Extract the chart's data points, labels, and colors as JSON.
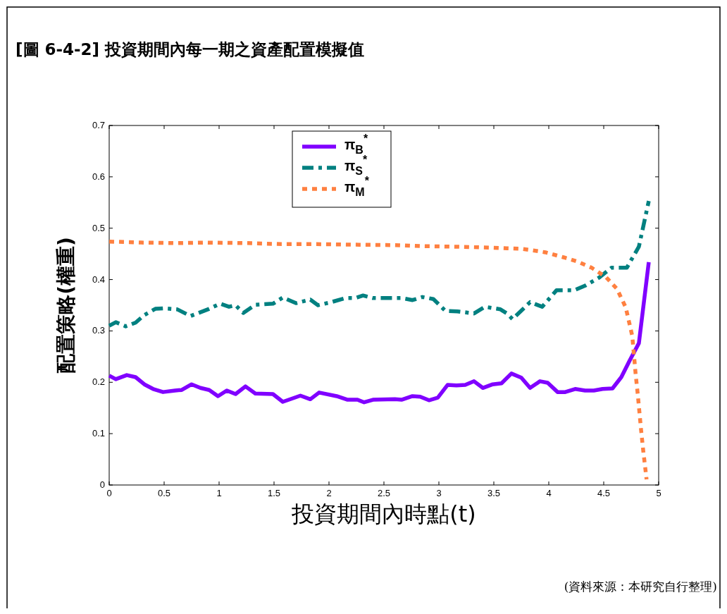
{
  "chart_data": {
    "type": "line",
    "title": "[圖 6-4-2] 投資期間內每一期之資產配置模擬值",
    "xlabel": "投資期間內時點(t)",
    "ylabel": "配置策略(權重)",
    "annotations": [
      "(資料來源：本研究自行整理)"
    ],
    "series": [
      {
        "name": "π$_{B}$$^{*}$",
        "color": "#8000ff",
        "line_style": "solid",
        "x": [
          0,
          0.06,
          0.16,
          0.24,
          0.32,
          0.4,
          0.49,
          0.6,
          0.66,
          0.75,
          0.83,
          0.91,
          0.99,
          1.07,
          1.15,
          1.24,
          1.33,
          1.49,
          1.58,
          1.74,
          1.83,
          1.91,
          2.07,
          2.17,
          2.26,
          2.32,
          2.4,
          2.6,
          2.66,
          2.76,
          2.83,
          2.91,
          2.99,
          3.08,
          3.16,
          3.24,
          3.32,
          3.4,
          3.49,
          3.57,
          3.66,
          3.75,
          3.83,
          3.92,
          3.99,
          4.08,
          4.15,
          4.24,
          4.33,
          4.41,
          4.49,
          4.58,
          4.66,
          4.74,
          4.82,
          4.91
        ],
        "values": [
          0.213,
          0.206,
          0.214,
          0.21,
          0.196,
          0.187,
          0.181,
          0.184,
          0.185,
          0.196,
          0.189,
          0.185,
          0.173,
          0.184,
          0.177,
          0.192,
          0.178,
          0.177,
          0.162,
          0.174,
          0.167,
          0.18,
          0.173,
          0.166,
          0.166,
          0.161,
          0.166,
          0.167,
          0.166,
          0.173,
          0.172,
          0.165,
          0.17,
          0.195,
          0.194,
          0.195,
          0.202,
          0.189,
          0.196,
          0.198,
          0.217,
          0.209,
          0.189,
          0.202,
          0.199,
          0.181,
          0.181,
          0.187,
          0.184,
          0.184,
          0.187,
          0.188,
          0.21,
          0.244,
          0.276,
          0.434
        ]
      },
      {
        "name": "π$_{S}$$^{*}$",
        "color": "#008080",
        "line_style": "dashed",
        "x": [
          0,
          0.06,
          0.15,
          0.24,
          0.32,
          0.42,
          0.49,
          0.62,
          0.74,
          0.91,
          1.01,
          1.09,
          1.15,
          1.22,
          1.33,
          1.49,
          1.58,
          1.7,
          1.83,
          1.9,
          2.02,
          2.15,
          2.24,
          2.31,
          2.4,
          2.6,
          2.66,
          2.76,
          2.85,
          2.95,
          3.06,
          3.17,
          3.32,
          3.42,
          3.56,
          3.62,
          3.67,
          3.83,
          3.94,
          4.07,
          4.23,
          4.33,
          4.46,
          4.57,
          4.71,
          4.82,
          4.91
        ],
        "values": [
          0.31,
          0.317,
          0.309,
          0.316,
          0.331,
          0.343,
          0.344,
          0.342,
          0.329,
          0.343,
          0.353,
          0.347,
          0.35,
          0.335,
          0.351,
          0.353,
          0.365,
          0.354,
          0.361,
          0.35,
          0.356,
          0.364,
          0.364,
          0.369,
          0.364,
          0.364,
          0.364,
          0.36,
          0.366,
          0.362,
          0.339,
          0.338,
          0.334,
          0.347,
          0.342,
          0.334,
          0.323,
          0.356,
          0.347,
          0.379,
          0.379,
          0.388,
          0.404,
          0.423,
          0.423,
          0.464,
          0.553
        ]
      },
      {
        "name": "π$_{M}$$^{*}$",
        "color": "#ff8040",
        "line_style": "dotted",
        "x": [
          0,
          0.29,
          0.61,
          0.87,
          1.25,
          1.57,
          1.89,
          2.21,
          2.6,
          2.85,
          3.17,
          3.49,
          3.62,
          3.75,
          3.88,
          3.97,
          4.14,
          4.26,
          4.39,
          4.52,
          4.62,
          4.7,
          4.76,
          4.79,
          4.81,
          4.84,
          4.86,
          4.89
        ],
        "values": [
          0.474,
          0.472,
          0.471,
          0.472,
          0.471,
          0.469,
          0.469,
          0.468,
          0.467,
          0.465,
          0.464,
          0.462,
          0.461,
          0.46,
          0.456,
          0.453,
          0.443,
          0.435,
          0.423,
          0.405,
          0.382,
          0.346,
          0.29,
          0.217,
          0.176,
          0.107,
          0.066,
          0.011
        ]
      }
    ],
    "xlim": [
      0,
      5
    ],
    "xticks": [
      0,
      0.5,
      1,
      1.5,
      2,
      2.5,
      3,
      3.5,
      4,
      4.5,
      5
    ],
    "ylim": [
      0,
      0.7
    ],
    "yticks": [
      0,
      0.1,
      0.2,
      0.3,
      0.4,
      0.5,
      0.6,
      0.7
    ],
    "grid": false,
    "legend": "top"
  }
}
